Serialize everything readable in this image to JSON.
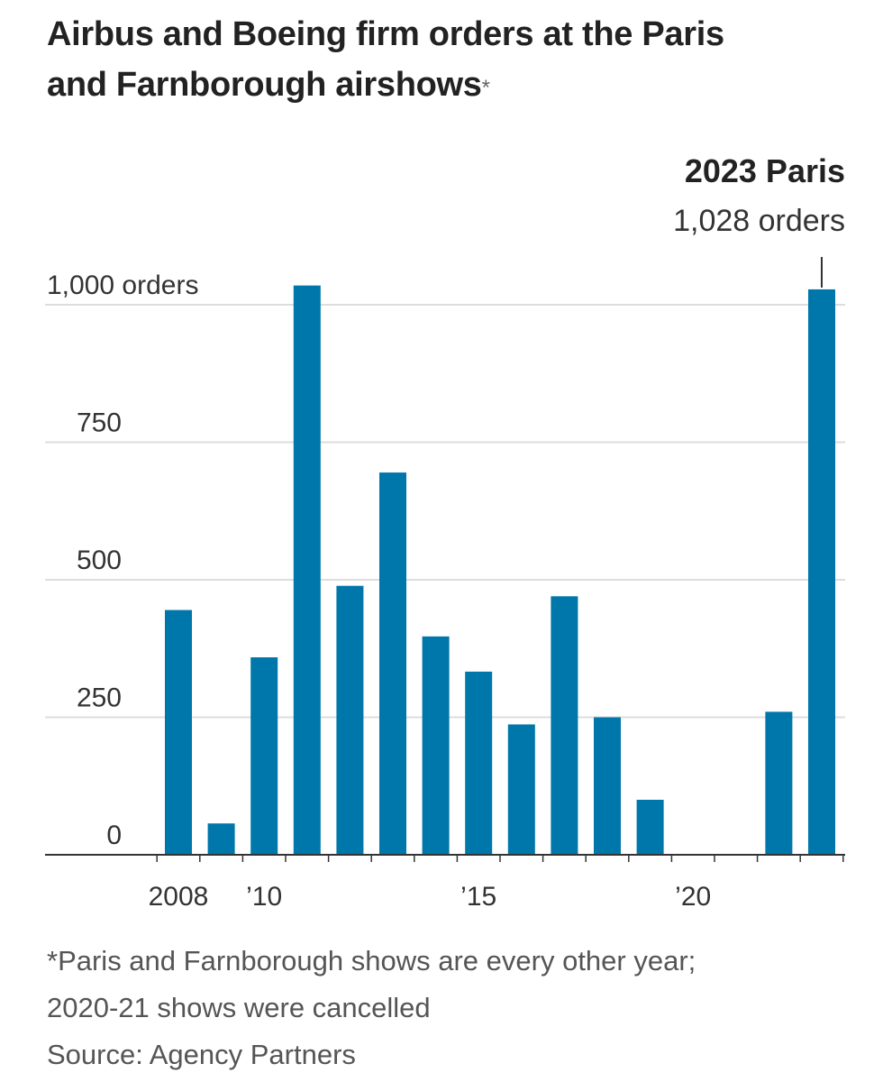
{
  "title_line1": "Airbus and Boeing firm orders at the Paris",
  "title_line2": "and Farnborough airshows",
  "title_mark": "*",
  "chart_data": {
    "type": "bar",
    "title": "Airbus and Boeing firm orders at the Paris and Farnborough airshows*",
    "x": [
      2008,
      2009,
      2010,
      2011,
      2012,
      2013,
      2014,
      2015,
      2016,
      2017,
      2018,
      2019,
      2020,
      2021,
      2022,
      2023
    ],
    "values": [
      445,
      57,
      359,
      1035,
      489,
      695,
      397,
      333,
      237,
      470,
      250,
      100,
      null,
      null,
      260,
      1028
    ],
    "ylim": [
      0,
      1000
    ],
    "yticks": [
      0,
      250,
      500,
      750,
      1000
    ],
    "ytick_labels": [
      "0",
      "250",
      "500",
      "750",
      "1,000 orders"
    ],
    "xtick_labels": [
      {
        "x": 2008,
        "label": "2008"
      },
      {
        "x": 2010,
        "label": "’10"
      },
      {
        "x": 2015,
        "label": "’15"
      },
      {
        "x": 2020,
        "label": "’20"
      }
    ],
    "annotation": {
      "x": 2023,
      "title": "2023 Paris",
      "text": "1,028 orders"
    },
    "bar_color": "#0077aa",
    "grid": true
  },
  "note_line1": "*Paris and Farnborough shows are every other year;",
  "note_line2": "2020-21 shows were cancelled",
  "source": "Source: Agency Partners"
}
